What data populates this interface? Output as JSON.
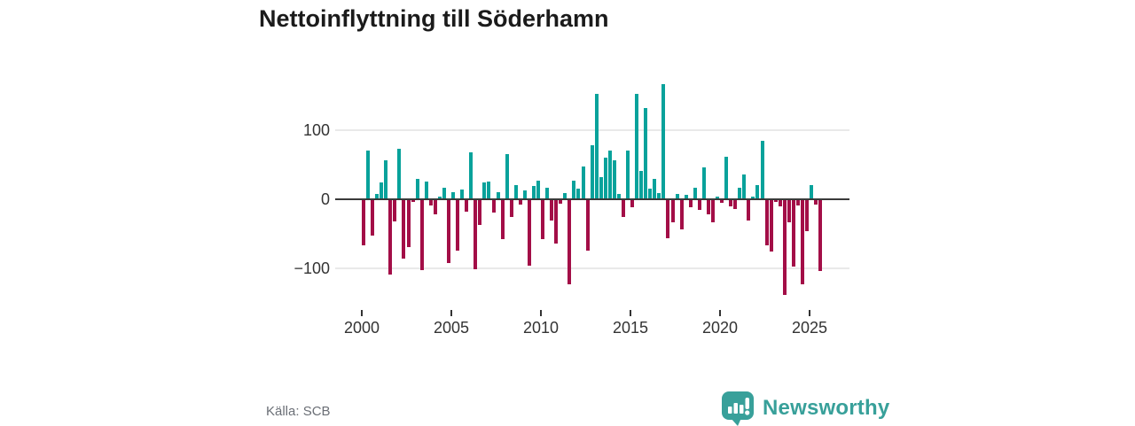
{
  "title": "Nettoinflyttning till Söderhamn",
  "source": "Källa: SCB",
  "brand": {
    "name": "Newsworthy",
    "color": "#38a09a"
  },
  "chart_data": {
    "type": "bar",
    "title": "Nettoinflyttning till Söderhamn",
    "frequency": "quarterly",
    "x_start": "2000 Q1",
    "x_end": "2025 Q3",
    "categories_note": "quarterly net migration values from 2000Q1 to 2025Q3",
    "values": [
      -66,
      70,
      -51,
      6,
      23,
      56,
      -108,
      -31,
      72,
      -85,
      -68,
      -3,
      28,
      -102,
      24,
      -8,
      -21,
      3,
      15,
      -91,
      9,
      -74,
      13,
      -17,
      67,
      -100,
      -36,
      23,
      24,
      -18,
      9,
      -57,
      65,
      -25,
      19,
      -6,
      12,
      -96,
      18,
      26,
      -57,
      16,
      -30,
      -63,
      -5,
      8,
      -123,
      26,
      14,
      46,
      -73,
      77,
      152,
      31,
      60,
      70,
      55,
      7,
      -25,
      70,
      -10,
      152,
      40,
      132,
      14,
      29,
      8,
      166,
      -55,
      -32,
      6,
      -42,
      5,
      -10,
      16,
      -14,
      45,
      -20,
      -32,
      2,
      -4,
      61,
      -9,
      -13,
      16,
      35,
      -29,
      3,
      19,
      84,
      -66,
      -75,
      -3,
      -9,
      -138,
      -32,
      -97,
      -8,
      -122,
      -45,
      20,
      -6,
      -103
    ],
    "y_ticks": [
      100,
      0,
      -100
    ],
    "y_tick_labels": [
      "100",
      "0",
      "−100"
    ],
    "x_tick_labels": [
      "2000",
      "2005",
      "2010",
      "2015",
      "2020",
      "2025"
    ],
    "ylim": [
      -150,
      175
    ],
    "grid": true,
    "legend": false,
    "colors": {
      "positive": "#08a29b",
      "negative": "#a30e47",
      "axis": "#3a3a3a",
      "gridline": "#e9e9e9"
    }
  }
}
